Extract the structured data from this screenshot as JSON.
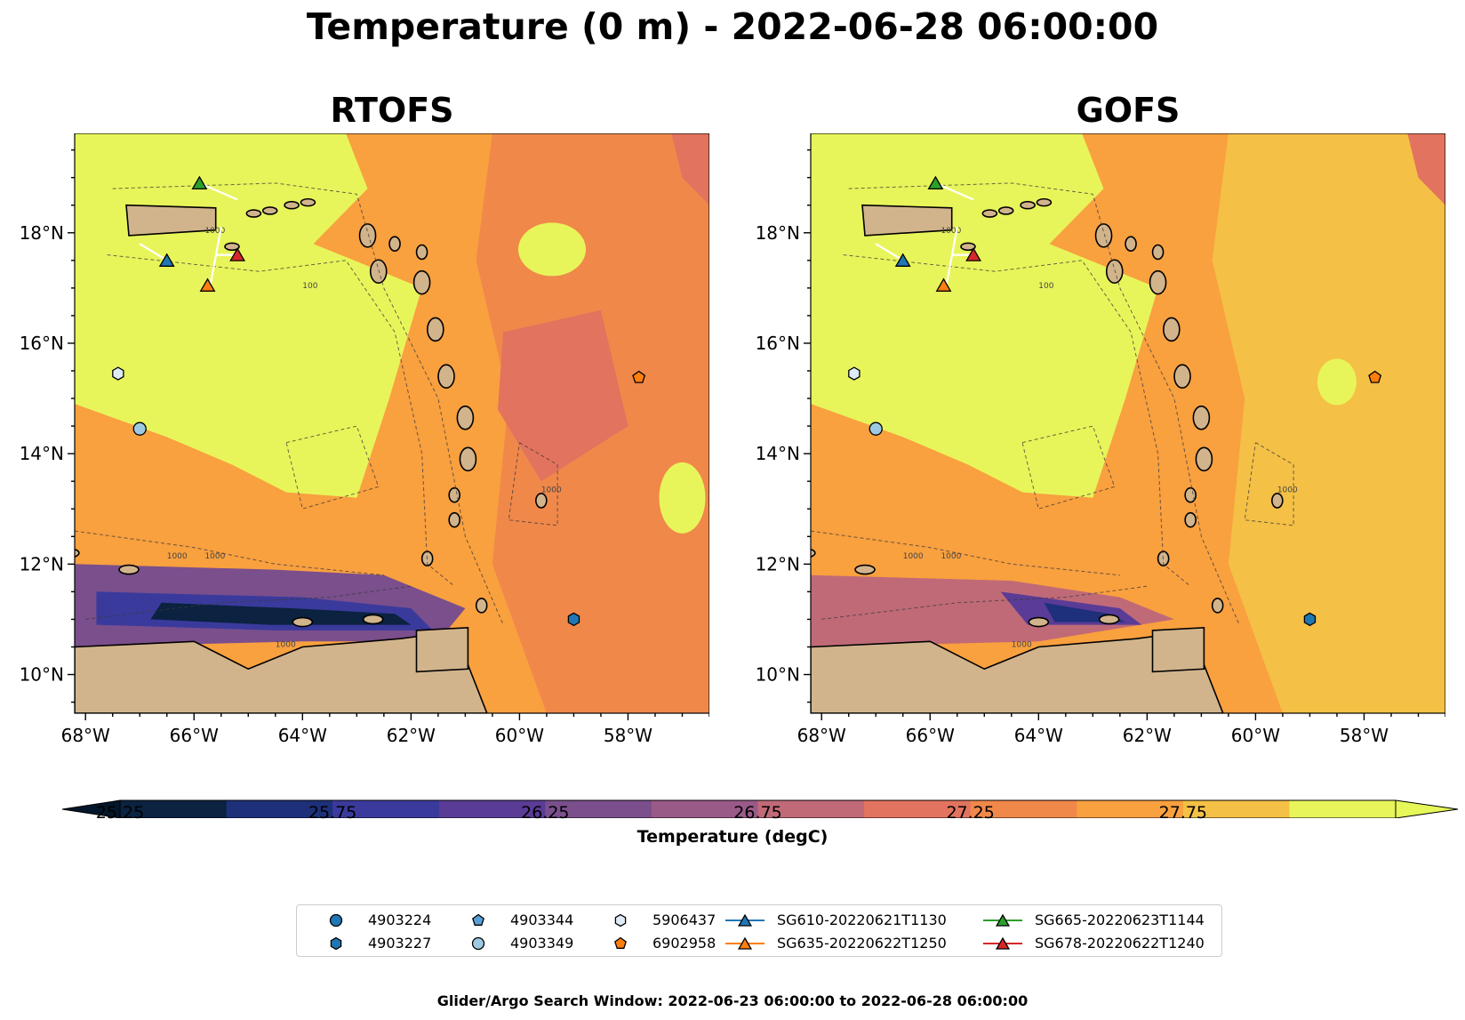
{
  "figure": {
    "suptitle": "Temperature (0 m) - 2022-06-28 06:00:00",
    "footer": "Glider/Argo Search Window: 2022-06-23 06:00:00 to 2022-06-28 06:00:00"
  },
  "panels": [
    {
      "title": "RTOFS"
    },
    {
      "title": "GOFS"
    }
  ],
  "axes": {
    "x_ticks": [
      "68°W",
      "66°W",
      "64°W",
      "62°W",
      "60°W",
      "58°W"
    ],
    "y_ticks": [
      "18°N",
      "16°N",
      "14°N",
      "12°N",
      "10°N"
    ]
  },
  "contour_labels": [
    "1000",
    "100",
    "1000",
    "1000",
    "1000",
    "1000"
  ],
  "colorbar": {
    "label": "Temperature (degC)",
    "tick_labels": [
      "25.25",
      "25.75",
      "26.25",
      "26.75",
      "27.25",
      "27.75"
    ],
    "levels": [
      25.25,
      25.5,
      25.75,
      26.0,
      26.25,
      26.5,
      26.75,
      27.0,
      27.25,
      27.5,
      27.75,
      28.0
    ],
    "colors": [
      "#0b2240",
      "#1d3079",
      "#3a3a9c",
      "#5a3c96",
      "#7a4f8c",
      "#9a5a88",
      "#c06a78",
      "#e2735e",
      "#f0884a",
      "#f9a03f",
      "#f4c045",
      "#e8f55a"
    ],
    "under_color": "#04162a",
    "over_color": "#e6f75a"
  },
  "chart_data": {
    "type": "heatmap",
    "variable": "Temperature (0 m)",
    "units": "degC",
    "x_range_lon": [
      -68.2,
      -56.5
    ],
    "y_range_lat": [
      9.3,
      19.8
    ],
    "value_range": [
      25.25,
      28.0
    ],
    "markers": [
      {
        "id": "4903224",
        "kind": "argo",
        "shape": "circle",
        "color": "#1f77b4",
        "lon": null,
        "lat": null
      },
      {
        "id": "4903227",
        "kind": "argo",
        "shape": "hexagon",
        "color": "#1f77b4",
        "lon": -59.0,
        "lat": 11.0
      },
      {
        "id": "4903344",
        "kind": "argo",
        "shape": "pentagon",
        "color": "#5aa0d8",
        "lon": null,
        "lat": null
      },
      {
        "id": "4903349",
        "kind": "argo",
        "shape": "circle",
        "color": "#9ecae1",
        "lon": -67.0,
        "lat": 14.45
      },
      {
        "id": "5906437",
        "kind": "argo",
        "shape": "hexagon",
        "color": "#deebf7",
        "lon": -67.4,
        "lat": 15.45
      },
      {
        "id": "6902958",
        "kind": "argo",
        "shape": "pentagon",
        "color": "#ff7f0e",
        "lon": -57.8,
        "lat": 15.38
      },
      {
        "id": "SG610-20220621T1130",
        "kind": "glider",
        "shape": "triangle",
        "color": "#1f77b4",
        "lon": -66.5,
        "lat": 17.5
      },
      {
        "id": "SG635-20220622T1250",
        "kind": "glider",
        "shape": "triangle",
        "color": "#ff7f0e",
        "lon": -65.75,
        "lat": 17.05
      },
      {
        "id": "SG665-20220623T1144",
        "kind": "glider",
        "shape": "triangle",
        "color": "#2ca02c",
        "lon": -65.9,
        "lat": 18.9
      },
      {
        "id": "SG678-20220622T1240",
        "kind": "glider",
        "shape": "triangle",
        "color": "#d62728",
        "lon": -65.2,
        "lat": 17.6
      }
    ]
  },
  "legend": {
    "items": [
      {
        "label": "4903224",
        "shape": "circle",
        "color": "#1f77b4"
      },
      {
        "label": "4903227",
        "shape": "hexagon",
        "color": "#1f77b4"
      },
      {
        "label": "4903344",
        "shape": "pentagon",
        "color": "#5aa0d8"
      },
      {
        "label": "4903349",
        "shape": "circle",
        "color": "#9ecae1"
      },
      {
        "label": "5906437",
        "shape": "hexagon",
        "color": "#deebf7"
      },
      {
        "label": "6902958",
        "shape": "pentagon",
        "color": "#ff7f0e"
      },
      {
        "label": "SG610-20220621T1130",
        "shape": "triangle-line",
        "color": "#1f77b4"
      },
      {
        "label": "SG635-20220622T1250",
        "shape": "triangle-line",
        "color": "#ff7f0e"
      },
      {
        "label": "SG665-20220623T1144",
        "shape": "triangle-line",
        "color": "#2ca02c"
      },
      {
        "label": "SG678-20220622T1240",
        "shape": "triangle-line",
        "color": "#d62728"
      }
    ]
  }
}
